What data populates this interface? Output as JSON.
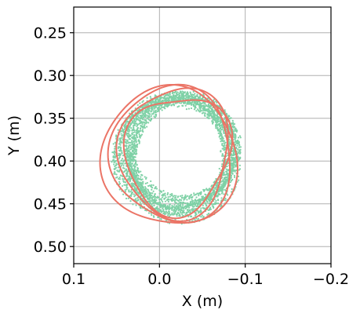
{
  "chart_data": {
    "type": "line",
    "title": "",
    "xlabel": "X (m)",
    "ylabel": "Y (m)",
    "x_axis_inverted": true,
    "y_axis_inverted": true,
    "xlim": [
      0.1,
      -0.2
    ],
    "ylim": [
      0.22,
      0.52
    ],
    "x_ticks": [
      0.1,
      0.0,
      -0.1,
      -0.2
    ],
    "x_tick_labels": [
      "0.1",
      "0.0",
      "−0.1",
      "−0.2"
    ],
    "y_ticks": [
      0.25,
      0.3,
      0.35,
      0.4,
      0.45,
      0.5
    ],
    "y_tick_labels": [
      "0.25",
      "0.30",
      "0.35",
      "0.40",
      "0.45",
      "0.50"
    ],
    "grid": true,
    "legend": "none",
    "series": [
      {
        "style": "dotted-scatter",
        "color": "#7fd1a6",
        "center": {
          "x": -0.02,
          "y": 0.395
        },
        "loops": [
          {
            "rx": 0.07,
            "ry": 0.072,
            "cx": -0.02,
            "cy": 0.395
          },
          {
            "rx": 0.066,
            "ry": 0.068,
            "cx": -0.022,
            "cy": 0.392
          },
          {
            "rx": 0.062,
            "ry": 0.064,
            "cx": -0.024,
            "cy": 0.39
          },
          {
            "rx": 0.058,
            "ry": 0.062,
            "cx": -0.026,
            "cy": 0.392
          },
          {
            "rx": 0.055,
            "ry": 0.058,
            "cx": -0.022,
            "cy": 0.388
          }
        ]
      },
      {
        "style": "solid-line",
        "color": "#eb7466",
        "loops": [
          {
            "rx": 0.078,
            "ry": 0.082,
            "cx": -0.012,
            "cy": 0.395
          },
          {
            "rx": 0.072,
            "ry": 0.078,
            "cx": -0.015,
            "cy": 0.392
          },
          {
            "rx": 0.066,
            "ry": 0.074,
            "cx": -0.018,
            "cy": 0.39
          },
          {
            "rx": 0.06,
            "ry": 0.07,
            "cx": -0.021,
            "cy": 0.392
          }
        ]
      }
    ]
  }
}
